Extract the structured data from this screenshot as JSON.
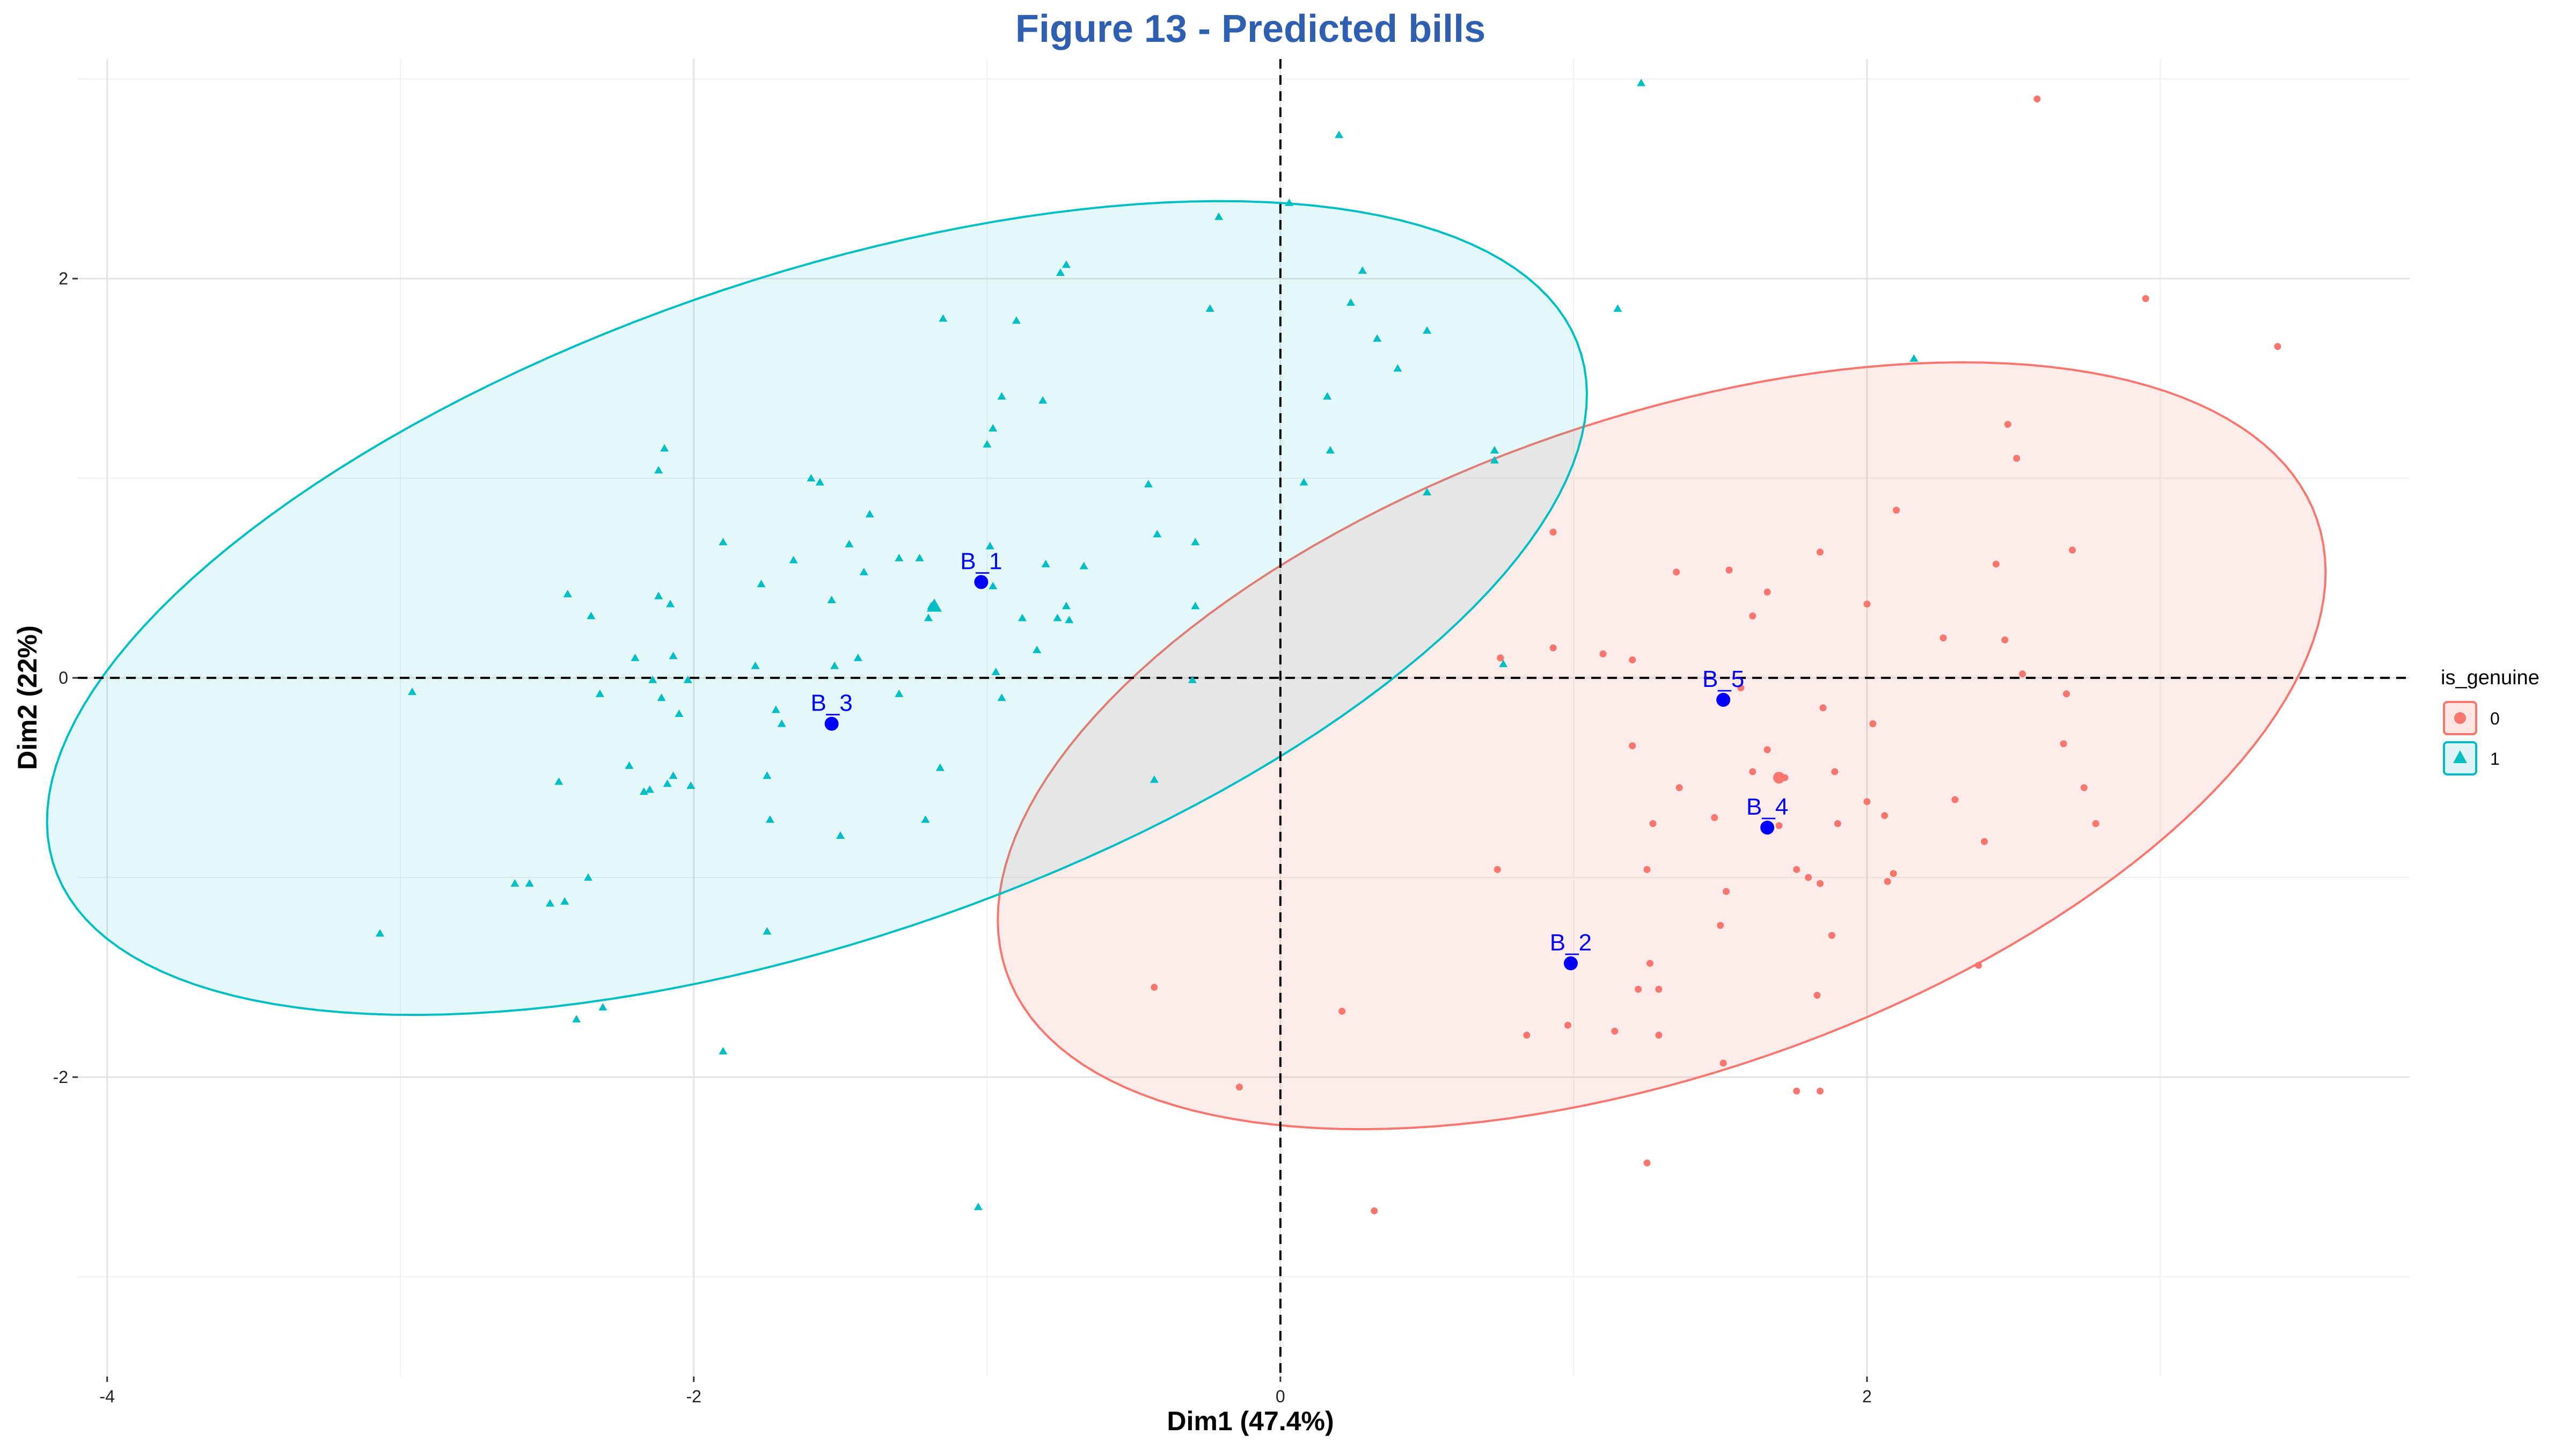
{
  "chart_data": {
    "type": "scatter",
    "title": "Figure 13 - Predicted bills",
    "xlabel": "Dim1 (47.4%)",
    "ylabel": "Dim2 (22%)",
    "xlim": [
      -4.1,
      3.85
    ],
    "ylim": [
      -3.5,
      3.1
    ],
    "x_ticks": [
      -4,
      -2,
      0,
      2
    ],
    "y_ticks": [
      -2,
      0,
      2
    ],
    "grid": true,
    "reference_lines": {
      "x": 0,
      "y": 0,
      "style": "dashed"
    },
    "legend": {
      "title": "is_genuine",
      "placement": "right",
      "entries": [
        {
          "label": "0",
          "shape": "circle",
          "color": "#F8766D"
        },
        {
          "label": "1",
          "shape": "triangle",
          "color": "#00BFC4"
        }
      ]
    },
    "series": [
      {
        "name": "0",
        "shape": "circle",
        "color": "#F8766D",
        "centroid": {
          "x": 1.7,
          "y": -0.5
        },
        "ellipse": {
          "cx": 1.3,
          "cy": -0.34,
          "ra": 2.55,
          "rb": 1.52,
          "angle_deg": 35
        },
        "points": [
          [
            2.58,
            2.9
          ],
          [
            3.4,
            1.66
          ],
          [
            2.95,
            1.9
          ],
          [
            2.48,
            1.27
          ],
          [
            2.51,
            1.1
          ],
          [
            2.1,
            0.84
          ],
          [
            1.84,
            0.63
          ],
          [
            2.7,
            0.64
          ],
          [
            2.44,
            0.57
          ],
          [
            1.53,
            0.54
          ],
          [
            1.35,
            0.53
          ],
          [
            1.66,
            0.43
          ],
          [
            2.0,
            0.37
          ],
          [
            1.61,
            0.31
          ],
          [
            2.26,
            0.2
          ],
          [
            2.47,
            0.19
          ],
          [
            0.93,
            0.15
          ],
          [
            1.1,
            0.12
          ],
          [
            0.75,
            0.1
          ],
          [
            1.2,
            0.09
          ],
          [
            2.53,
            0.02
          ],
          [
            2.68,
            -0.08
          ],
          [
            1.57,
            -0.05
          ],
          [
            1.85,
            -0.15
          ],
          [
            2.02,
            -0.23
          ],
          [
            2.67,
            -0.33
          ],
          [
            1.2,
            -0.34
          ],
          [
            1.66,
            -0.36
          ],
          [
            1.89,
            -0.47
          ],
          [
            1.61,
            -0.47
          ],
          [
            1.72,
            -0.5
          ],
          [
            2.74,
            -0.55
          ],
          [
            1.36,
            -0.55
          ],
          [
            2.3,
            -0.61
          ],
          [
            2.0,
            -0.62
          ],
          [
            2.06,
            -0.69
          ],
          [
            1.48,
            -0.7
          ],
          [
            1.27,
            -0.73
          ],
          [
            1.7,
            -0.74
          ],
          [
            1.9,
            -0.73
          ],
          [
            2.78,
            -0.73
          ],
          [
            2.4,
            -0.82
          ],
          [
            1.25,
            -0.96
          ],
          [
            0.74,
            -0.96
          ],
          [
            1.76,
            -0.96
          ],
          [
            1.8,
            -1.0
          ],
          [
            2.09,
            -0.98
          ],
          [
            1.84,
            -1.03
          ],
          [
            2.07,
            -1.02
          ],
          [
            1.52,
            -1.07
          ],
          [
            1.88,
            -1.29
          ],
          [
            1.5,
            -1.24
          ],
          [
            1.26,
            -1.43
          ],
          [
            1.22,
            -1.56
          ],
          [
            2.38,
            -1.44
          ],
          [
            1.29,
            -1.56
          ],
          [
            1.83,
            -1.59
          ],
          [
            -0.43,
            -1.55
          ],
          [
            0.21,
            -1.67
          ],
          [
            0.84,
            -1.79
          ],
          [
            0.98,
            -1.74
          ],
          [
            1.14,
            -1.77
          ],
          [
            1.29,
            -1.79
          ],
          [
            1.51,
            -1.93
          ],
          [
            -0.14,
            -2.05
          ],
          [
            1.76,
            -2.07
          ],
          [
            1.84,
            -2.07
          ],
          [
            1.25,
            -2.43
          ],
          [
            0.32,
            -2.67
          ],
          [
            0.93,
            0.73
          ]
        ]
      },
      {
        "name": "1",
        "shape": "triangle",
        "color": "#00BFC4",
        "centroid": {
          "x": -1.18,
          "y": 0.36
        },
        "ellipse": {
          "cx": -1.58,
          "cy": 0.35,
          "ra": 2.94,
          "rb": 1.55,
          "angle_deg": 32
        },
        "points": [
          [
            1.23,
            2.98
          ],
          [
            0.2,
            2.72
          ],
          [
            0.03,
            2.38
          ],
          [
            -0.21,
            2.31
          ],
          [
            -0.73,
            2.07
          ],
          [
            -0.75,
            2.03
          ],
          [
            0.28,
            2.04
          ],
          [
            -0.24,
            1.85
          ],
          [
            0.24,
            1.88
          ],
          [
            1.15,
            1.85
          ],
          [
            -1.15,
            1.8
          ],
          [
            -0.9,
            1.79
          ],
          [
            0.33,
            1.7
          ],
          [
            0.5,
            1.74
          ],
          [
            0.4,
            1.55
          ],
          [
            -0.95,
            1.41
          ],
          [
            -0.81,
            1.39
          ],
          [
            0.16,
            1.41
          ],
          [
            2.16,
            1.6
          ],
          [
            -1.0,
            1.17
          ],
          [
            0.17,
            1.14
          ],
          [
            0.73,
            1.14
          ],
          [
            -2.1,
            1.15
          ],
          [
            -2.12,
            1.04
          ],
          [
            -0.98,
            1.25
          ],
          [
            0.73,
            1.09
          ],
          [
            -1.6,
            1.0
          ],
          [
            -1.57,
            0.98
          ],
          [
            -0.45,
            0.97
          ],
          [
            0.08,
            0.98
          ],
          [
            0.5,
            0.93
          ],
          [
            -1.4,
            0.82
          ],
          [
            -1.9,
            0.68
          ],
          [
            -0.99,
            0.66
          ],
          [
            -0.42,
            0.72
          ],
          [
            -0.29,
            0.68
          ],
          [
            -1.47,
            0.67
          ],
          [
            -1.3,
            0.6
          ],
          [
            -1.23,
            0.6
          ],
          [
            -1.66,
            0.59
          ],
          [
            -0.67,
            0.56
          ],
          [
            -0.8,
            0.57
          ],
          [
            -1.42,
            0.53
          ],
          [
            -1.77,
            0.47
          ],
          [
            -0.98,
            0.46
          ],
          [
            -1.53,
            0.39
          ],
          [
            -2.43,
            0.42
          ],
          [
            -2.12,
            0.41
          ],
          [
            -2.08,
            0.37
          ],
          [
            -1.19,
            0.36
          ],
          [
            -0.73,
            0.36
          ],
          [
            -0.29,
            0.36
          ],
          [
            -2.35,
            0.31
          ],
          [
            -0.88,
            0.3
          ],
          [
            -0.76,
            0.3
          ],
          [
            -0.72,
            0.29
          ],
          [
            -1.2,
            0.3
          ],
          [
            -0.83,
            0.14
          ],
          [
            -2.07,
            0.11
          ],
          [
            -2.2,
            0.1
          ],
          [
            -1.44,
            0.1
          ],
          [
            -1.52,
            0.06
          ],
          [
            -1.79,
            0.06
          ],
          [
            0.76,
            0.07
          ],
          [
            -0.97,
            0.03
          ],
          [
            -2.02,
            -0.01
          ],
          [
            -2.14,
            -0.01
          ],
          [
            -0.3,
            -0.01
          ],
          [
            -2.96,
            -0.07
          ],
          [
            -2.32,
            -0.08
          ],
          [
            -1.3,
            -0.08
          ],
          [
            -0.95,
            -0.1
          ],
          [
            -1.72,
            -0.16
          ],
          [
            -2.11,
            -0.1
          ],
          [
            -2.05,
            -0.18
          ],
          [
            -1.7,
            -0.23
          ],
          [
            -2.22,
            -0.44
          ],
          [
            -2.07,
            -0.49
          ],
          [
            -2.46,
            -0.52
          ],
          [
            -1.16,
            -0.45
          ],
          [
            -1.75,
            -0.49
          ],
          [
            -0.43,
            -0.51
          ],
          [
            -2.15,
            -0.56
          ],
          [
            -2.17,
            -0.57
          ],
          [
            -2.09,
            -0.53
          ],
          [
            -2.01,
            -0.54
          ],
          [
            -1.74,
            -0.71
          ],
          [
            -1.21,
            -0.71
          ],
          [
            -1.5,
            -0.79
          ],
          [
            -2.36,
            -1.0
          ],
          [
            -2.61,
            -1.03
          ],
          [
            -2.56,
            -1.03
          ],
          [
            -2.49,
            -1.13
          ],
          [
            -2.44,
            -1.12
          ],
          [
            -1.75,
            -1.27
          ],
          [
            -3.07,
            -1.28
          ],
          [
            -2.31,
            -1.65
          ],
          [
            -2.4,
            -1.71
          ],
          [
            -1.9,
            -1.87
          ],
          [
            -1.03,
            -2.65
          ]
        ]
      }
    ],
    "predictions": [
      {
        "label": "B_1",
        "x": -1.02,
        "y": 0.48
      },
      {
        "label": "B_2",
        "x": 0.99,
        "y": -1.43
      },
      {
        "label": "B_3",
        "x": -1.53,
        "y": -0.23
      },
      {
        "label": "B_4",
        "x": 1.66,
        "y": -0.75
      },
      {
        "label": "B_5",
        "x": 1.51,
        "y": -0.11
      }
    ],
    "prediction_color": "#0000ff"
  }
}
